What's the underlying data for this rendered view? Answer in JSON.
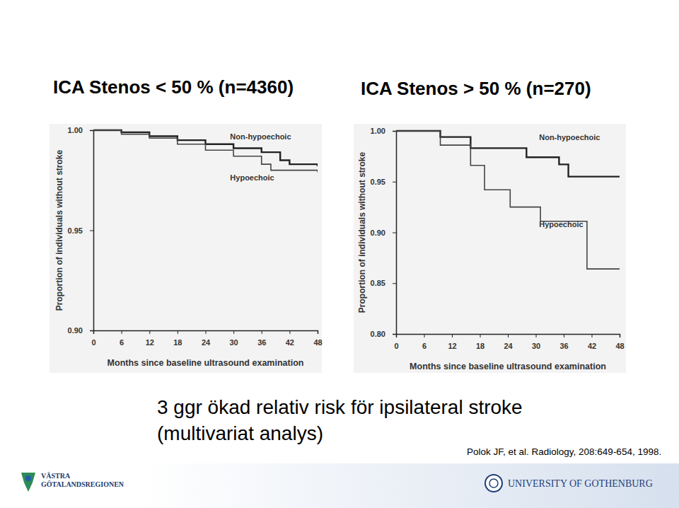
{
  "chart_data": [
    {
      "type": "line",
      "title": "ICA Stenos < 50 % (n=4360)",
      "x_label": "Months since baseline ultrasound examination",
      "y_label": "Proportion of individuals without stroke",
      "xlim": [
        0,
        48
      ],
      "xticks": [
        0,
        6,
        12,
        18,
        24,
        30,
        36,
        42,
        48
      ],
      "ylim": [
        0.9,
        1.0
      ],
      "yticks": [
        {
          "value": 0.9,
          "label": "0.90"
        },
        {
          "value": 0.95,
          "label": "0.95"
        },
        {
          "value": 1.0,
          "label": "1.00"
        }
      ],
      "line_style": "step",
      "series": [
        {
          "name": "Non-hypoechoic",
          "color": "#222222",
          "x": [
            0,
            6,
            12,
            18,
            24,
            30,
            36,
            40,
            42,
            48
          ],
          "values": [
            1.0,
            0.999,
            0.997,
            0.995,
            0.993,
            0.991,
            0.989,
            0.985,
            0.983,
            0.982
          ]
        },
        {
          "name": "Hypoechoic",
          "color": "#444444",
          "x": [
            0,
            6,
            12,
            18,
            24,
            30,
            36,
            38,
            48
          ],
          "values": [
            1.0,
            0.998,
            0.996,
            0.993,
            0.99,
            0.987,
            0.983,
            0.98,
            0.979
          ]
        }
      ]
    },
    {
      "type": "line",
      "title": "ICA Stenos > 50 % (n=270)",
      "x_label": "Months since baseline ultrasound examination",
      "y_label": "Proportion of individuals without stroke",
      "xlim": [
        0,
        48
      ],
      "xticks": [
        0,
        6,
        12,
        18,
        24,
        30,
        36,
        42,
        48
      ],
      "ylim": [
        0.8,
        1.0
      ],
      "yticks": [
        {
          "value": 0.8,
          "label": "0.80"
        },
        {
          "value": 0.85,
          "label": "0.85"
        },
        {
          "value": 0.9,
          "label": "0.90"
        },
        {
          "value": 0.95,
          "label": "0.95"
        },
        {
          "value": 1.0,
          "label": "1.00"
        }
      ],
      "line_style": "step",
      "series": [
        {
          "name": "Non-hypoechoic",
          "color": "#222222",
          "x": [
            0,
            9.5,
            16,
            28,
            35,
            37,
            48
          ],
          "values": [
            1.0,
            0.994,
            0.983,
            0.974,
            0.967,
            0.955,
            0.955
          ]
        },
        {
          "name": "Hypoechoic",
          "color": "#444444",
          "x": [
            0,
            9.5,
            16,
            19,
            24.5,
            31,
            41,
            48
          ],
          "values": [
            1.0,
            0.986,
            0.966,
            0.942,
            0.925,
            0.911,
            0.864,
            0.864
          ]
        }
      ]
    }
  ],
  "slide": {
    "caption": [
      "3 ggr ökad relativ risk för ipsilateral stroke",
      "(multivariat analys)"
    ],
    "citation": "Polok JF, et al. Radiology, 208:649-654, 1998.",
    "vgr_logo": [
      "VÄSTRA",
      "GÖTALANDSREGIONEN"
    ],
    "university": "UNIVERSITY OF GOTHENBURG"
  }
}
